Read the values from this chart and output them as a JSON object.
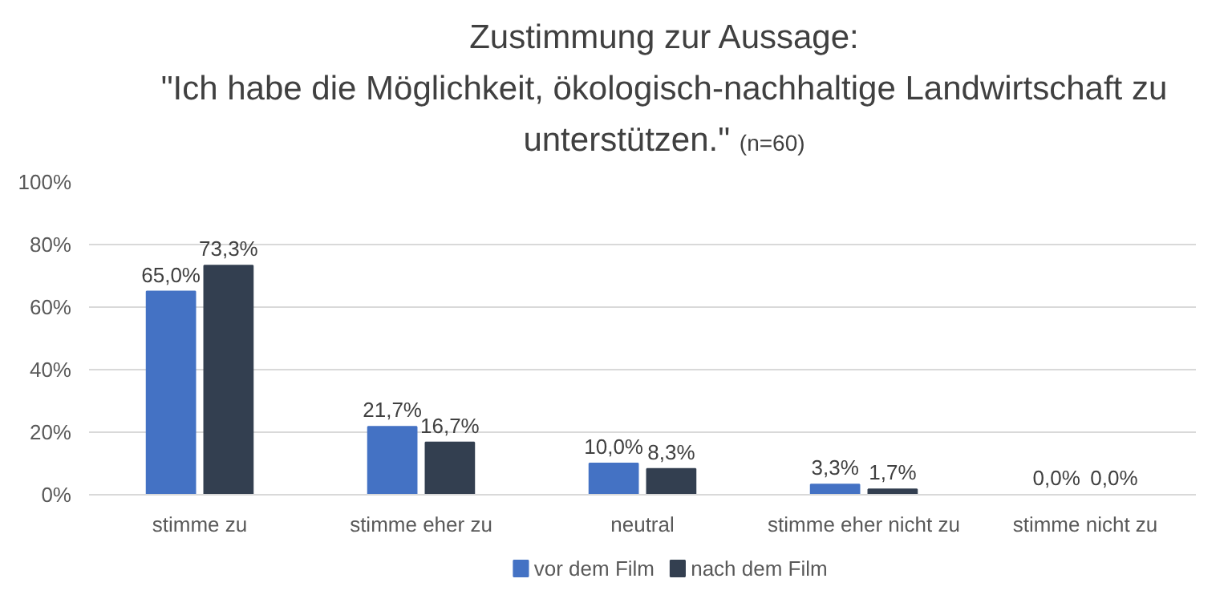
{
  "chart_data": {
    "type": "bar",
    "title": "Zustimmung zur Aussage:\n\"Ich habe die Möglichkeit, ökologisch-nachhaltige Landwirtschaft zu\nunterstützen.\"",
    "subtitle": "(n=60)",
    "categories": [
      "stimme zu",
      "stimme eher zu",
      "neutral",
      "stimme eher nicht zu",
      "stimme nicht zu"
    ],
    "series": [
      {
        "name": "vor dem Film",
        "color": "#4472c4",
        "values": [
          65.0,
          21.7,
          10.0,
          3.3,
          0.0
        ],
        "value_labels": [
          "65,0%",
          "21,7%",
          "10,0%",
          "3,3%",
          "0,0%"
        ]
      },
      {
        "name": "nach dem Film",
        "color": "#333f50",
        "values": [
          73.3,
          16.7,
          8.3,
          1.7,
          0.0
        ],
        "value_labels": [
          "73,3%",
          "16,7%",
          "8,3%",
          "1,7%",
          "0,0%"
        ]
      }
    ],
    "ylim": [
      0,
      100
    ],
    "yticks": [
      {
        "value": 0,
        "label": "0%"
      },
      {
        "value": 20,
        "label": "20%"
      },
      {
        "value": 40,
        "label": "40%"
      },
      {
        "value": 60,
        "label": "60%"
      },
      {
        "value": 80,
        "label": "80%"
      },
      {
        "value": 100,
        "label": "100%"
      }
    ],
    "grid": "y",
    "legend": "bottom"
  }
}
